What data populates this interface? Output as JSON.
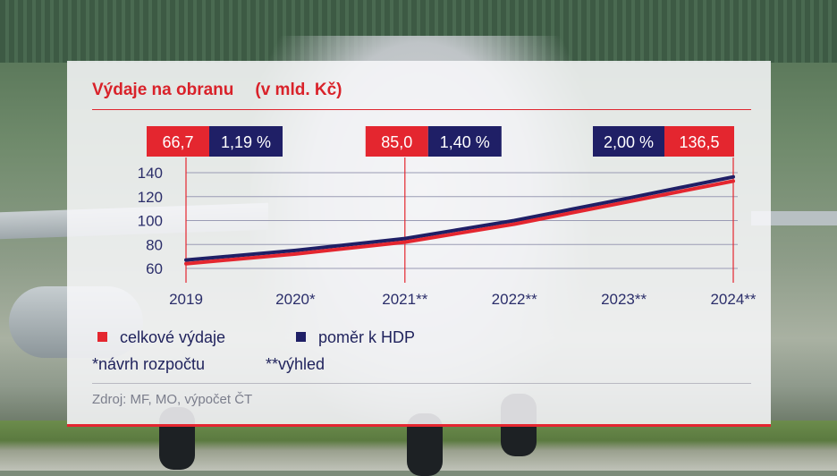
{
  "chart_data": {
    "type": "line",
    "title": "Výdaje na obranu",
    "unit_label": "(v mld. Kč)",
    "categories": [
      "2019",
      "2020*",
      "2021**",
      "2022**",
      "2023**",
      "2024**"
    ],
    "x_positions": [
      2019,
      2020,
      2021,
      2022,
      2023,
      2024
    ],
    "yticks": [
      "140",
      "120",
      "100",
      "80",
      "60"
    ],
    "ylim": [
      60,
      140
    ],
    "series": [
      {
        "name": "celkové výdaje",
        "color": "#e4262f",
        "points": [
          [
            2019,
            64
          ],
          [
            2020,
            72
          ],
          [
            2021,
            82
          ],
          [
            2022,
            97
          ],
          [
            2023,
            115
          ],
          [
            2024,
            133
          ]
        ]
      },
      {
        "name": "poměr k HDP",
        "color": "#1f1f66",
        "points": [
          [
            2019,
            67
          ],
          [
            2020,
            75
          ],
          [
            2021,
            85
          ],
          [
            2022,
            100
          ],
          [
            2023,
            118
          ],
          [
            2024,
            136.5
          ]
        ]
      }
    ],
    "annotations": [
      {
        "x": 2019,
        "total": "66,7",
        "ratio": "1,19 %",
        "order": "total-first"
      },
      {
        "x": 2021,
        "total": "85,0",
        "ratio": "1,40 %",
        "order": "total-first"
      },
      {
        "x": 2024,
        "total": "136,5",
        "ratio": "2,00 %",
        "order": "ratio-first"
      }
    ],
    "grid": true,
    "legend_position": "bottom-left"
  },
  "legend": {
    "total_label": "celkové výdaje",
    "ratio_label": "poměr k HDP",
    "total_color": "#e4262f",
    "ratio_color": "#1f1f66"
  },
  "notes": {
    "proposal": "*návrh rozpočtu",
    "outlook": "**výhled"
  },
  "source": "Zdroj: MF, MO, výpočet ČT"
}
